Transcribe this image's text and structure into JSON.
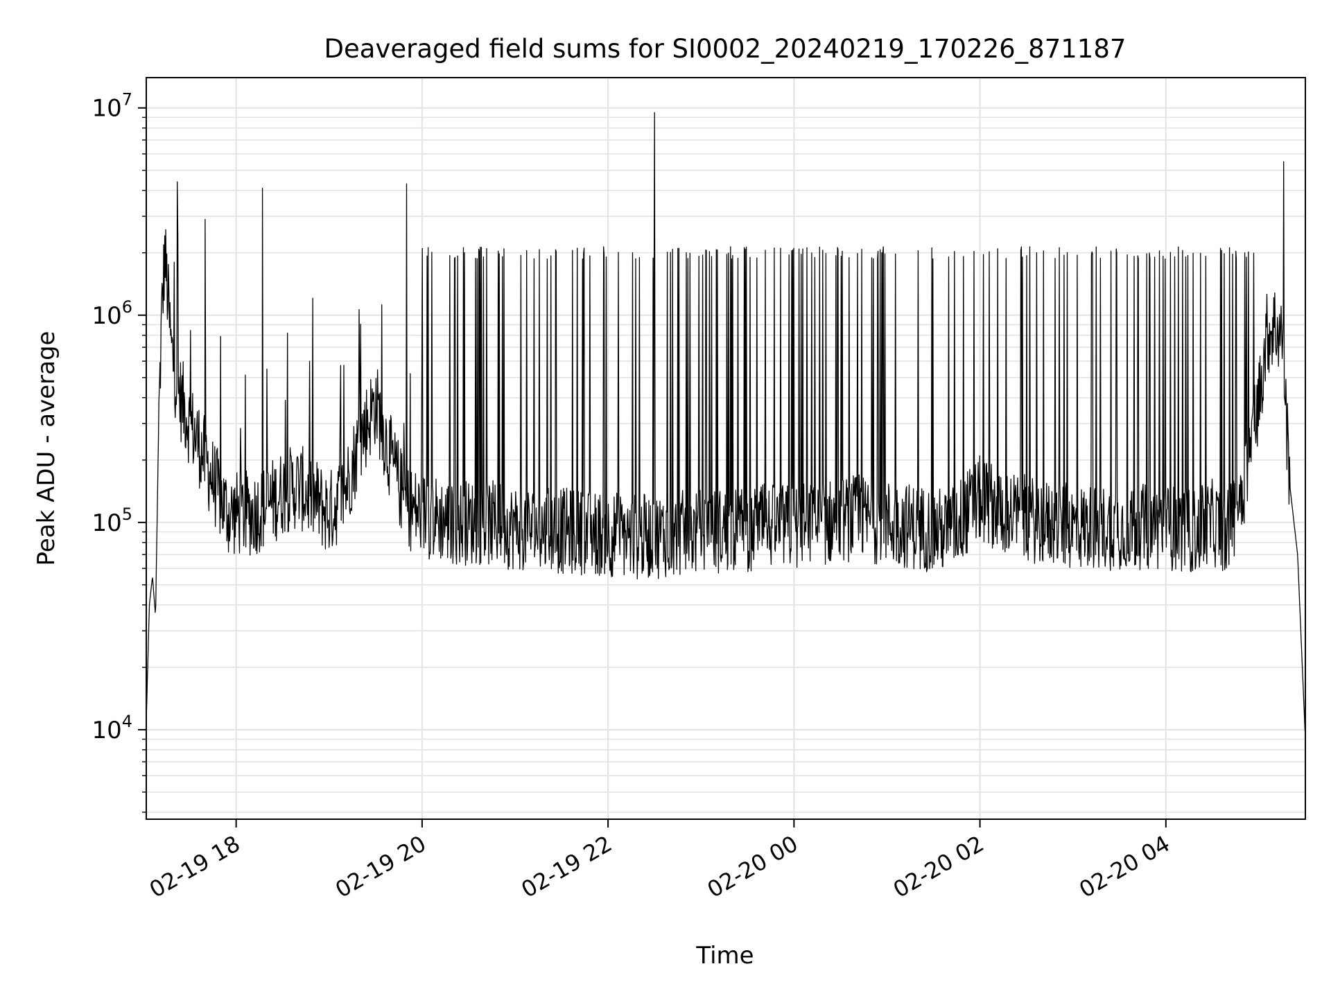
{
  "chart_data": {
    "type": "line",
    "title": "Deaveraged field sums for SI0002_20240219_170226_871187",
    "xlabel": "Time",
    "ylabel": "Peak ADU - average",
    "yscale": "log",
    "grid": true,
    "xlim": [
      "02-19 17:02",
      "02-20 05:30"
    ],
    "ylim": [
      3700,
      14000000
    ],
    "x_ticks": [
      "02-19 18",
      "02-19 20",
      "02-19 22",
      "02-20 00",
      "02-20 02",
      "02-20 04"
    ],
    "y_ticks": [
      {
        "value": 10000,
        "base": "10",
        "exp": "4"
      },
      {
        "value": 100000,
        "base": "10",
        "exp": "5"
      },
      {
        "value": 1000000,
        "base": "10",
        "exp": "6"
      },
      {
        "value": 10000000,
        "base": "10",
        "exp": "7"
      }
    ],
    "series": [
      {
        "color": "#000000",
        "x": [
          "02-19 17:02",
          "02-19 17:04",
          "02-19 17:06",
          "02-19 17:08",
          "02-19 17:10",
          "02-19 17:12",
          "02-19 17:14",
          "02-19 17:16",
          "02-19 17:18",
          "02-19 17:21",
          "02-19 17:24",
          "02-19 17:27",
          "02-19 17:30",
          "02-19 17:35",
          "02-19 17:40",
          "02-19 17:45",
          "02-19 17:50",
          "02-19 17:55",
          "02-19 18:00",
          "02-19 18:10",
          "02-19 18:20",
          "02-19 18:30",
          "02-19 18:40",
          "02-19 18:50",
          "02-19 19:00",
          "02-19 19:10",
          "02-19 19:20",
          "02-19 19:30",
          "02-19 19:40",
          "02-19 19:50",
          "02-19 20:00",
          "02-19 20:20",
          "02-19 20:40",
          "02-19 21:00",
          "02-19 21:20",
          "02-19 21:40",
          "02-19 22:00",
          "02-19 22:20",
          "02-19 22:40",
          "02-19 23:00",
          "02-19 23:20",
          "02-19 23:40",
          "02-20 00:00",
          "02-20 00:20",
          "02-20 00:40",
          "02-20 01:00",
          "02-20 01:20",
          "02-20 01:40",
          "02-20 02:00",
          "02-20 02:20",
          "02-20 02:40",
          "02-20 03:00",
          "02-20 03:20",
          "02-20 03:40",
          "02-20 04:00",
          "02-20 04:20",
          "02-20 04:30",
          "02-20 04:40",
          "02-20 04:50",
          "02-20 05:00",
          "02-20 05:05",
          "02-20 05:10",
          "02-20 05:15",
          "02-20 05:20",
          "02-20 05:25",
          "02-20 05:30"
        ],
        "y": [
          11000,
          40000,
          55000,
          35000,
          300000,
          1000000,
          2000000,
          1200000,
          700000,
          500000,
          400000,
          350000,
          300000,
          250000,
          200000,
          160000,
          130000,
          110000,
          110000,
          110000,
          120000,
          140000,
          150000,
          130000,
          110000,
          140000,
          250000,
          380000,
          200000,
          120000,
          110000,
          100000,
          100000,
          95000,
          92000,
          90000,
          88000,
          85000,
          88000,
          90000,
          92000,
          95000,
          95000,
          100000,
          105000,
          100000,
          95000,
          90000,
          130000,
          110000,
          100000,
          95000,
          95000,
          95000,
          95000,
          90000,
          100000,
          90000,
          150000,
          400000,
          800000,
          900000,
          800000,
          150000,
          70000,
          9000
        ]
      }
    ],
    "spikes": [
      {
        "x": "02-19 17:22",
        "y": 4400000
      },
      {
        "x": "02-19 17:40",
        "y": 2900000
      },
      {
        "x": "02-19 18:17",
        "y": 4100000
      },
      {
        "x": "02-19 19:50",
        "y": 4300000
      },
      {
        "x": "02-19 22:30",
        "y": 9500000
      },
      {
        "x": "02-20 05:16",
        "y": 5500000
      }
    ],
    "spike_band": {
      "x_start": "02-19 20:00",
      "x_end": "02-20 05:00",
      "typical_peak": 2000000
    }
  }
}
